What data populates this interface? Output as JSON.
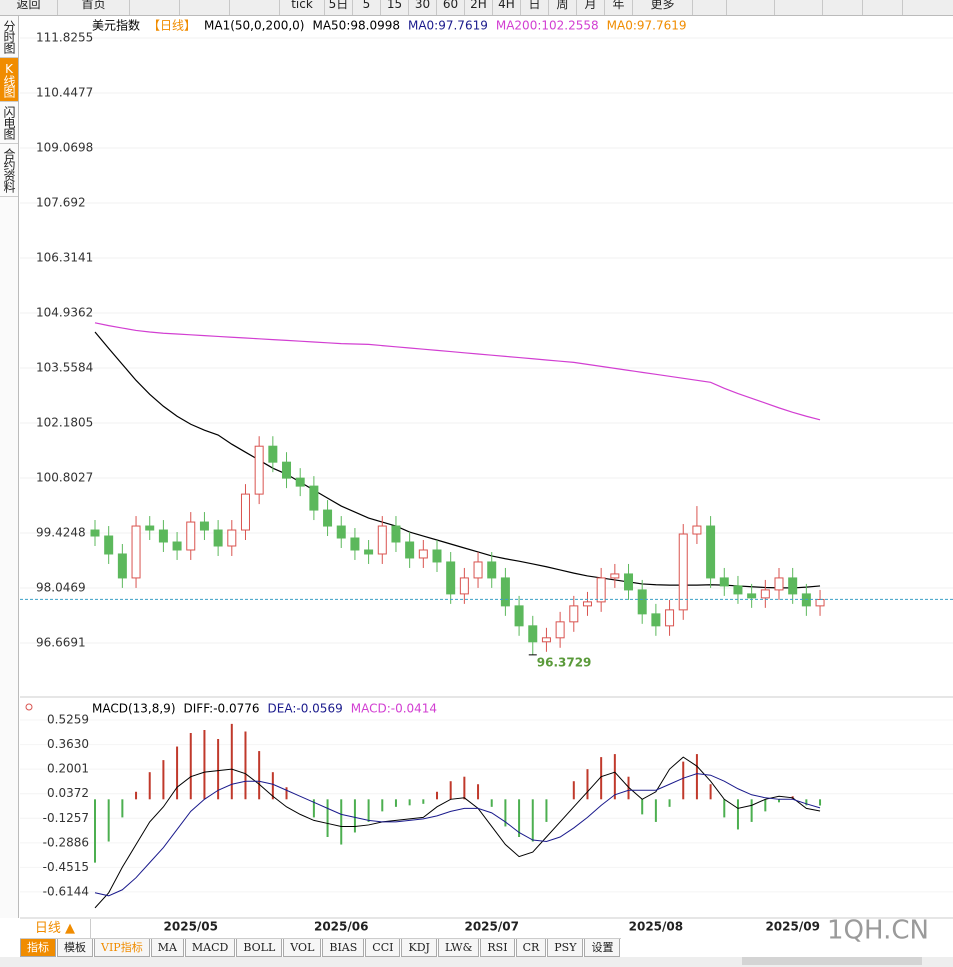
{
  "toolbar": {
    "items": [
      "返回",
      "首页",
      "tick",
      "5日",
      "5",
      "15",
      "30",
      "60",
      "2H",
      "4H",
      "日",
      "周",
      "月",
      "年",
      "更多"
    ]
  },
  "sidebar": {
    "tabs": [
      "分时图",
      "K线图",
      "闪电图",
      "合约资料"
    ]
  },
  "chart_data": [
    {
      "type": "candlestick",
      "legend": [
        {
          "label": "美元指数",
          "color": "#000000"
        },
        {
          "label": "【日线】",
          "color": "#f08c00"
        },
        {
          "label": "MA1(50,0,200,0)",
          "color": "#000000"
        },
        {
          "label": "MA50:98.0998",
          "color": "#000000"
        },
        {
          "label": "MA0:97.7619",
          "color": "#1a1a8c"
        },
        {
          "label": "MA200:102.2558",
          "color": "#d23fd2"
        },
        {
          "label": "MA0:97.7619",
          "color": "#f08c00"
        }
      ],
      "categories": [
        null,
        null,
        null,
        null,
        null,
        null,
        null,
        "2025/05",
        null,
        null,
        null,
        null,
        null,
        null,
        null,
        null,
        null,
        null,
        "2025/06",
        null,
        null,
        null,
        null,
        null,
        null,
        null,
        null,
        null,
        null,
        "2025/07",
        null,
        null,
        null,
        null,
        null,
        null,
        null,
        null,
        null,
        null,
        null,
        "2025/08",
        null,
        null,
        null,
        null,
        null,
        null,
        null,
        null,
        null,
        "2025/09",
        null,
        null
      ],
      "open": [
        99.5,
        99.35,
        98.9,
        98.3,
        99.6,
        99.5,
        99.2,
        99.0,
        99.7,
        99.5,
        99.1,
        99.5,
        100.4,
        101.6,
        101.2,
        100.8,
        100.6,
        100.0,
        99.6,
        99.3,
        99.0,
        98.9,
        99.6,
        99.2,
        98.8,
        99.0,
        98.7,
        97.9,
        98.3,
        98.7,
        98.3,
        97.6,
        97.1,
        96.7,
        96.8,
        97.2,
        97.6,
        97.7,
        98.3,
        98.4,
        98.0,
        97.4,
        97.1,
        97.5,
        99.4,
        99.6,
        98.3,
        98.1,
        97.9,
        97.8,
        98.0,
        98.3,
        97.9,
        97.6
      ],
      "high": [
        99.75,
        99.6,
        99.15,
        99.85,
        99.85,
        99.75,
        99.45,
        99.95,
        99.95,
        99.75,
        99.75,
        100.65,
        101.85,
        101.85,
        101.45,
        101.05,
        100.85,
        100.25,
        99.85,
        99.55,
        99.25,
        99.85,
        99.85,
        99.45,
        99.25,
        99.25,
        98.95,
        98.55,
        98.95,
        98.95,
        98.55,
        97.85,
        97.35,
        97.05,
        97.45,
        97.85,
        97.95,
        98.55,
        98.65,
        98.65,
        98.25,
        97.65,
        97.75,
        99.65,
        100.1,
        99.85,
        98.55,
        98.35,
        98.15,
        98.25,
        98.55,
        98.55,
        98.15,
        98.0
      ],
      "low": [
        99.1,
        98.65,
        98.05,
        98.05,
        99.25,
        98.95,
        98.75,
        98.75,
        99.25,
        98.85,
        98.85,
        99.25,
        100.15,
        100.95,
        100.55,
        100.35,
        99.75,
        99.35,
        99.05,
        98.75,
        98.65,
        98.65,
        98.95,
        98.55,
        98.55,
        98.45,
        97.65,
        97.65,
        98.05,
        98.05,
        97.35,
        96.85,
        96.3729,
        96.45,
        96.55,
        96.95,
        97.35,
        97.45,
        98.05,
        97.75,
        97.15,
        96.85,
        96.85,
        97.25,
        99.15,
        98.05,
        97.85,
        97.65,
        97.55,
        97.55,
        97.75,
        97.65,
        97.35,
        97.35
      ],
      "close": [
        99.35,
        98.9,
        98.3,
        99.6,
        99.5,
        99.2,
        99.0,
        99.7,
        99.5,
        99.1,
        99.5,
        100.4,
        101.6,
        101.2,
        100.8,
        100.6,
        100.0,
        99.6,
        99.3,
        99.0,
        98.9,
        99.6,
        99.2,
        98.8,
        99.0,
        98.7,
        97.9,
        98.3,
        98.7,
        98.3,
        97.6,
        97.1,
        96.7,
        96.8,
        97.2,
        97.6,
        97.7,
        98.3,
        98.4,
        98.0,
        97.4,
        97.1,
        97.5,
        99.4,
        99.6,
        98.3,
        98.1,
        97.9,
        97.8,
        98.0,
        98.3,
        97.9,
        97.6,
        97.76
      ],
      "up_color": "#d9534f",
      "down_color": "#5cb85c",
      "series": [
        {
          "color": "#000000",
          "values": [
            104.46,
            104.05,
            103.65,
            103.25,
            102.9,
            102.6,
            102.35,
            102.15,
            102.0,
            101.88,
            101.65,
            101.45,
            101.25,
            101.05,
            100.9,
            100.7,
            100.5,
            100.3,
            100.1,
            99.95,
            99.8,
            99.7,
            99.6,
            99.45,
            99.35,
            99.25,
            99.15,
            99.05,
            98.95,
            98.85,
            98.78,
            98.72,
            98.65,
            98.58,
            98.5,
            98.42,
            98.35,
            98.3,
            98.25,
            98.2,
            98.15,
            98.13,
            98.12,
            98.12,
            98.12,
            98.13,
            98.12,
            98.1,
            98.08,
            98.06,
            98.05,
            98.05,
            98.07,
            98.1
          ]
        },
        {
          "color": "#d23fd2",
          "values": [
            104.69,
            104.62,
            104.56,
            104.5,
            104.46,
            104.43,
            104.41,
            104.39,
            104.37,
            104.35,
            104.33,
            104.31,
            104.29,
            104.27,
            104.25,
            104.23,
            104.21,
            104.19,
            104.17,
            104.16,
            104.15,
            104.12,
            104.09,
            104.06,
            104.03,
            104.0,
            103.97,
            103.94,
            103.91,
            103.88,
            103.85,
            103.82,
            103.79,
            103.76,
            103.73,
            103.7,
            103.65,
            103.6,
            103.55,
            103.5,
            103.45,
            103.4,
            103.35,
            103.3,
            103.25,
            103.2,
            103.05,
            102.92,
            102.8,
            102.68,
            102.56,
            102.45,
            102.35,
            102.26
          ]
        }
      ],
      "last_price": 97.7619,
      "last_price_color": "#3aa0c8",
      "min_index": 32,
      "ylim": [
        95.3173,
        112.4017
      ],
      "yticks": [
        96.6691,
        98.0469,
        99.4248,
        100.8027,
        102.1805,
        103.5584,
        104.9362,
        106.3141,
        107.692,
        109.0698,
        110.4477,
        111.8255
      ],
      "grid": true
    },
    {
      "type": "macd",
      "legend": [
        {
          "label": "MACD(13,8,9)",
          "color": "#000000"
        },
        {
          "label": "DIFF:-0.0776",
          "color": "#000000"
        },
        {
          "label": "DEA:-0.0569",
          "color": "#1a1a8c"
        },
        {
          "label": "MACD:-0.0414",
          "color": "#d23fd2"
        }
      ],
      "bar_up_color": "#c0392b",
      "bar_down_color": "#4caf50",
      "bars": [
        -0.42,
        -0.28,
        -0.12,
        0.05,
        0.18,
        0.26,
        0.35,
        0.44,
        0.46,
        0.4,
        0.5,
        0.45,
        0.32,
        0.18,
        0.08,
        0,
        -0.12,
        -0.25,
        -0.3,
        -0.22,
        -0.15,
        -0.08,
        -0.05,
        -0.04,
        -0.03,
        0.05,
        0.12,
        0.15,
        0.1,
        -0.05,
        -0.18,
        -0.25,
        -0.28,
        -0.15,
        0,
        0.12,
        0.2,
        0.28,
        0.3,
        0.15,
        -0.1,
        -0.15,
        -0.05,
        0.25,
        0.3,
        0.1,
        -0.12,
        -0.2,
        -0.15,
        -0.08,
        -0.02,
        0.02,
        -0.04,
        -0.0414
      ],
      "series": [
        {
          "color": "#000000",
          "values": [
            -0.72,
            -0.62,
            -0.45,
            -0.3,
            -0.15,
            -0.05,
            0.08,
            0.15,
            0.18,
            0.19,
            0.2,
            0.17,
            0.1,
            0.02,
            -0.05,
            -0.1,
            -0.14,
            -0.16,
            -0.18,
            -0.18,
            -0.17,
            -0.15,
            -0.14,
            -0.13,
            -0.12,
            -0.05,
            0,
            0.01,
            -0.06,
            -0.18,
            -0.3,
            -0.38,
            -0.35,
            -0.25,
            -0.15,
            -0.05,
            0.05,
            0.15,
            0.18,
            0.08,
            0,
            0.05,
            0.2,
            0.28,
            0.22,
            0.12,
            0,
            -0.06,
            -0.04,
            0,
            0.02,
            0.01,
            -0.06,
            -0.0776
          ]
        },
        {
          "color": "#1a1a8c",
          "values": [
            -0.62,
            -0.64,
            -0.6,
            -0.52,
            -0.42,
            -0.32,
            -0.2,
            -0.08,
            0,
            0.06,
            0.1,
            0.12,
            0.12,
            0.1,
            0.06,
            0.02,
            -0.02,
            -0.06,
            -0.1,
            -0.12,
            -0.14,
            -0.15,
            -0.15,
            -0.14,
            -0.13,
            -0.11,
            -0.08,
            -0.06,
            -0.06,
            -0.09,
            -0.15,
            -0.22,
            -0.27,
            -0.28,
            -0.25,
            -0.19,
            -0.12,
            -0.04,
            0.03,
            0.06,
            0.06,
            0.06,
            0.1,
            0.14,
            0.17,
            0.16,
            0.12,
            0.07,
            0.03,
            0.01,
            0,
            0,
            -0.03,
            -0.0569
          ]
        }
      ],
      "ylim": [
        -0.7873,
        0.6256
      ],
      "yticks": [
        -0.6144,
        -0.4515,
        -0.2886,
        -0.1257,
        0.0372,
        0.2001,
        {
          "value": 0.363,
          "label": "0.3630"
        },
        0.5259
      ]
    }
  ],
  "period_button": "日线 ▲",
  "footer": {
    "tabs": [
      "指标",
      "模板",
      "VIP指标",
      "MA",
      "MACD",
      "BOLL",
      "VOL",
      "BIAS",
      "CCI",
      "KDJ",
      "LW&",
      "RSI",
      "CR",
      "PSY",
      "设置"
    ]
  },
  "watermark": "1QH.CN"
}
